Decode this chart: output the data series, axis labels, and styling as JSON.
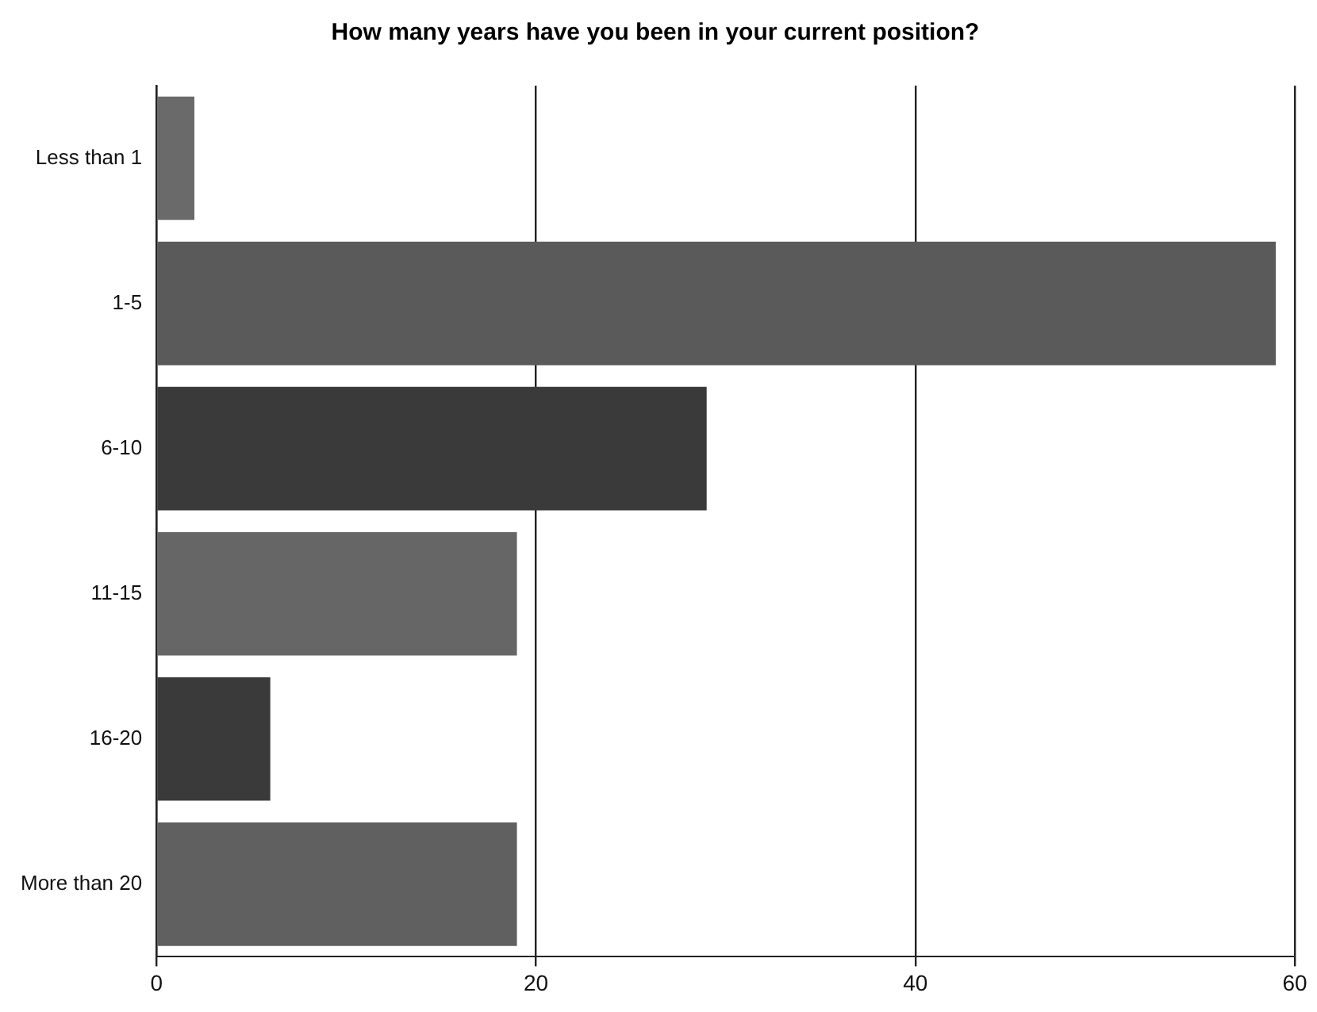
{
  "chart_data": {
    "type": "bar",
    "orientation": "horizontal",
    "title": "How many years have you been in your current position?",
    "categories": [
      "Less than 1",
      "1-5",
      "6-10",
      "11-15",
      "16-20",
      "More than 20"
    ],
    "values": [
      2,
      59,
      29,
      19,
      6,
      19
    ],
    "colors": [
      "#6a6a6a",
      "#5a5a5a",
      "#3a3a3a",
      "#666666",
      "#3a3a3a",
      "#606060"
    ],
    "xlim": [
      0,
      60
    ],
    "xticks": [
      0,
      20,
      40,
      60
    ],
    "grid": "x",
    "legend": false
  }
}
